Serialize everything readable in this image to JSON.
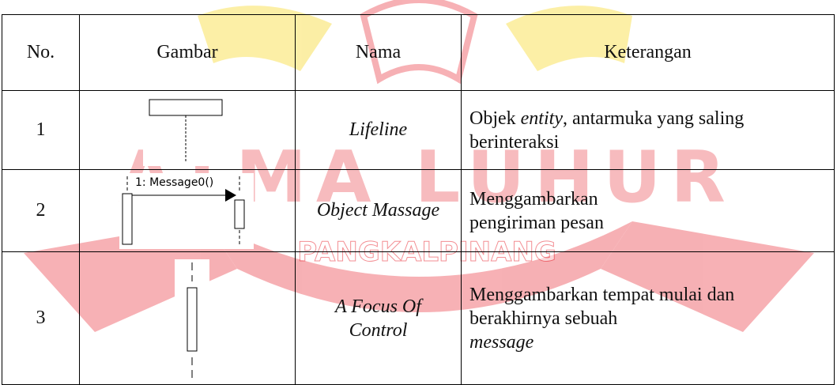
{
  "watermark": {
    "title": "ATMA LUHUR",
    "subtitle": "PANGKALPINANG"
  },
  "table": {
    "header": [
      "No.",
      "Gambar",
      "Nama",
      "Keterangan"
    ],
    "rows": [
      {
        "no": "1",
        "nama": "Lifeline",
        "keterangan": [
          "Objek",
          "entity",
          ", antarmuka yang saling berinteraksi"
        ]
      },
      {
        "no": "2",
        "image_label": "1: Message0()",
        "nama": "Object Massage",
        "keterangan": [
          "Menggambarkan pengiriman pesan"
        ]
      },
      {
        "no": "3",
        "nama": "A Focus Of Control",
        "keterangan": [
          "Menggambarkan tempat mulai dan berakhirnya sebuah",
          "message"
        ]
      }
    ]
  }
}
